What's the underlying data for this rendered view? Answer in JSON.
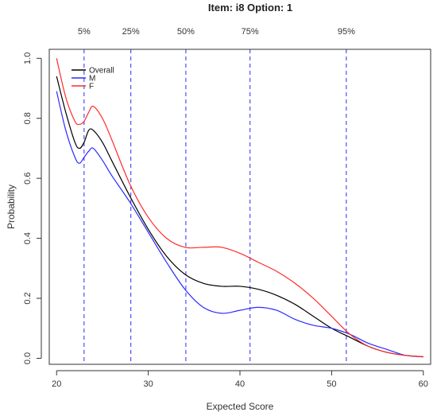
{
  "chart_data": {
    "type": "line",
    "title": "Item:  i8   Option:  1",
    "xlabel": "Expected Score",
    "ylabel": "Probability",
    "xlim": [
      19.2,
      60.8
    ],
    "ylim": [
      -0.02,
      1.03
    ],
    "xticks": [
      20,
      30,
      40,
      50,
      60
    ],
    "xtick_labels": [
      "20",
      "30",
      "40",
      "50",
      "60"
    ],
    "yticks": [
      0.0,
      0.2,
      0.4,
      0.6,
      0.8,
      1.0
    ],
    "ytick_labels": [
      "0.0",
      "0.2",
      "0.4",
      "0.6",
      "0.8",
      "1.0"
    ],
    "percentile_lines": [
      {
        "label": "5%",
        "x": 23.0
      },
      {
        "label": "25%",
        "x": 28.1
      },
      {
        "label": "50%",
        "x": 34.1
      },
      {
        "label": "75%",
        "x": 41.1
      },
      {
        "label": "95%",
        "x": 51.6
      }
    ],
    "legend_position": "top-left",
    "series": [
      {
        "name": "Overall",
        "color": "#000000",
        "x": [
          20,
          21,
          22,
          22.5,
          23,
          23.5,
          24,
          25,
          26,
          28,
          30,
          32,
          34,
          36,
          38,
          40,
          42,
          44,
          46,
          48,
          50,
          52,
          54,
          56,
          58,
          60
        ],
        "y": [
          0.94,
          0.82,
          0.72,
          0.7,
          0.72,
          0.76,
          0.76,
          0.72,
          0.66,
          0.54,
          0.43,
          0.34,
          0.28,
          0.25,
          0.24,
          0.24,
          0.23,
          0.21,
          0.18,
          0.14,
          0.1,
          0.07,
          0.04,
          0.02,
          0.01,
          0.005
        ]
      },
      {
        "name": "M",
        "color": "#2b2bff",
        "x": [
          20,
          21,
          22,
          22.5,
          23,
          23.5,
          24,
          25,
          26,
          28,
          30,
          32,
          34,
          36,
          38,
          40,
          42,
          44,
          46,
          48,
          50,
          52,
          54,
          56,
          58,
          60
        ],
        "y": [
          0.89,
          0.76,
          0.67,
          0.65,
          0.67,
          0.69,
          0.7,
          0.66,
          0.61,
          0.52,
          0.42,
          0.32,
          0.23,
          0.17,
          0.15,
          0.16,
          0.17,
          0.16,
          0.13,
          0.11,
          0.1,
          0.08,
          0.05,
          0.03,
          0.01,
          0.005
        ]
      },
      {
        "name": "F",
        "color": "#ff2b2b",
        "x": [
          20,
          21,
          22,
          22.5,
          23,
          23.5,
          24,
          25,
          26,
          28,
          30,
          32,
          34,
          36,
          38,
          40,
          42,
          44,
          46,
          48,
          50,
          52,
          54,
          56,
          58,
          60
        ],
        "y": [
          1.0,
          0.87,
          0.79,
          0.78,
          0.79,
          0.82,
          0.84,
          0.8,
          0.73,
          0.58,
          0.47,
          0.4,
          0.37,
          0.37,
          0.37,
          0.35,
          0.32,
          0.29,
          0.25,
          0.2,
          0.14,
          0.08,
          0.04,
          0.02,
          0.01,
          0.005
        ]
      }
    ]
  }
}
